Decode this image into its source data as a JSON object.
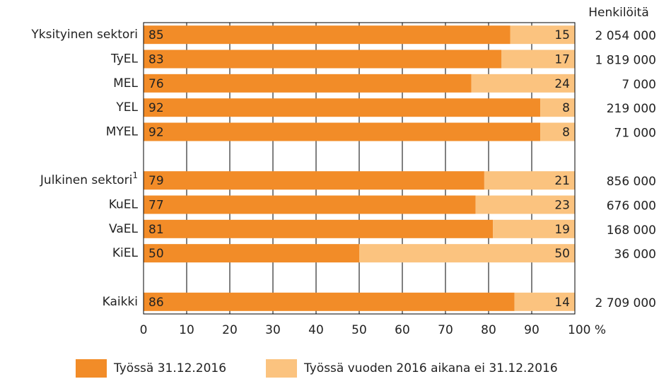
{
  "chart_data": {
    "type": "stacked-barh",
    "categories": [
      "Yksityinen sektori",
      "TyEL",
      "MEL",
      "YEL",
      "MYEL",
      null,
      "Julkinen sektori",
      "KuEL",
      "VaEL",
      "KiEL",
      null,
      "Kaikki"
    ],
    "category_superscripts": [
      null,
      null,
      null,
      null,
      null,
      null,
      "1",
      null,
      null,
      null,
      null,
      null
    ],
    "series": [
      {
        "name": "Työssä 31.12.2016",
        "color": "#f28c28",
        "values": [
          85,
          83,
          76,
          92,
          92,
          null,
          79,
          77,
          81,
          50,
          null,
          86
        ]
      },
      {
        "name": "Työssä vuoden 2016 aikana ei 31.12.2016",
        "color": "#fbc37f",
        "values": [
          15,
          17,
          24,
          8,
          8,
          null,
          21,
          23,
          19,
          50,
          null,
          14
        ]
      }
    ],
    "xlim": [
      0,
      100
    ],
    "xticks": [
      0,
      10,
      20,
      30,
      40,
      50,
      60,
      70,
      80,
      90,
      {
        "value": 100,
        "label": "100 %"
      }
    ],
    "grid": true,
    "legend": "bottom",
    "persons": {
      "title": "Henkilöitä",
      "values": [
        2054000,
        1819000,
        7000,
        219000,
        71000,
        null,
        856000,
        676000,
        168000,
        36000,
        null,
        2709000
      ],
      "value_labels": [
        "2 054 000",
        "1 819 000",
        "7 000",
        "219 000",
        "71 000",
        null,
        "856 000",
        "676 000",
        "168 000",
        "36 000",
        null,
        "2 709 000"
      ]
    }
  }
}
